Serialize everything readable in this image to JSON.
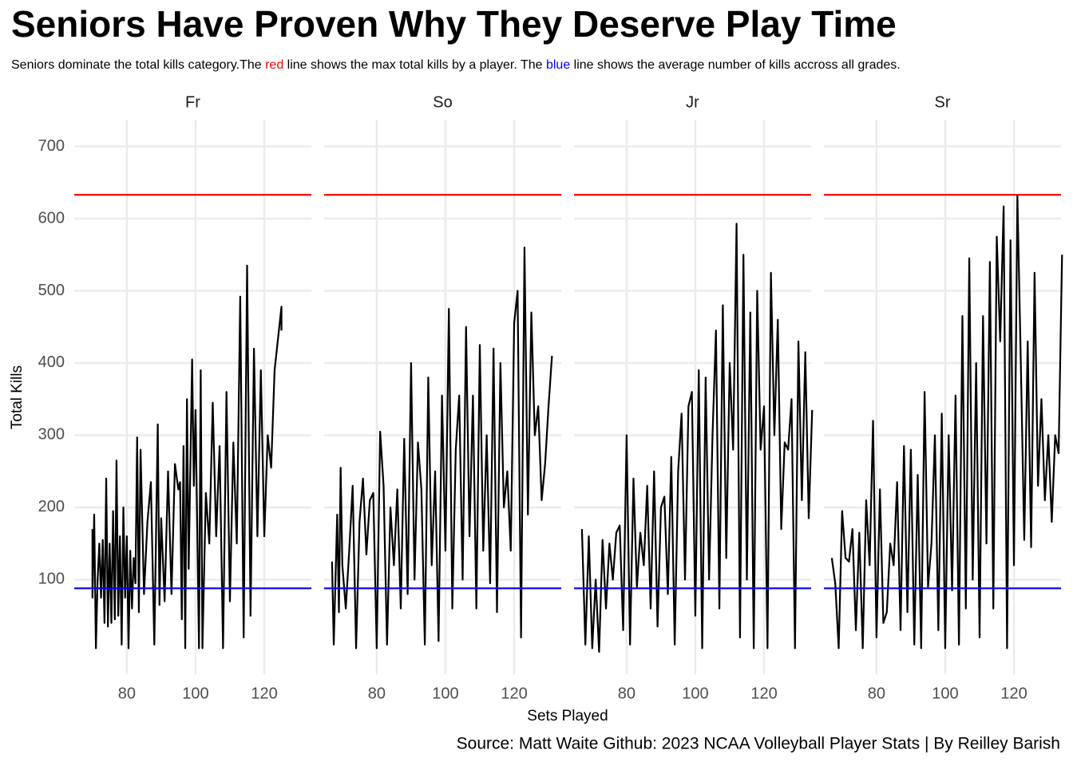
{
  "title": "Seniors Have Proven Why They Deserve Play Time",
  "subtitle": [
    {
      "text": "Seniors dominate the total kills category.The "
    },
    {
      "text": "red",
      "color": "#ff0000"
    },
    {
      "text": " line shows the max total kills by a player. The "
    },
    {
      "text": "blue",
      "color": "#0000ff"
    },
    {
      "text": " line shows the average number of kills accross all grades."
    }
  ],
  "x_label": "Sets Played",
  "y_label": "Total Kills",
  "caption": "Source: Matt Waite Github: 2023 NCAA Volleyball Player Stats | By Reilley Barish",
  "chart_data": [
    {
      "type": "line",
      "title": "Fr",
      "x": [
        70,
        70,
        70.5,
        71,
        71.5,
        72,
        72.5,
        73,
        73.5,
        74,
        74.5,
        75,
        75.5,
        76,
        76.5,
        77,
        77.5,
        78,
        78.5,
        79,
        79.5,
        80,
        80.5,
        81,
        81.5,
        82,
        82.5,
        83,
        83.5,
        84,
        85,
        86,
        87,
        88,
        89,
        89.5,
        90,
        91,
        92,
        93,
        94,
        95,
        95.5,
        96,
        96.5,
        97,
        97.5,
        98,
        99,
        99.5,
        100,
        101,
        101.5,
        102,
        103,
        104,
        105,
        106,
        107,
        108,
        109,
        110,
        111,
        112,
        113,
        114,
        115,
        116,
        117,
        118,
        119,
        120,
        121,
        122,
        123,
        125,
        125
      ],
      "series": [
        {
          "color": "#000000",
          "values": [
            170,
            75,
            190,
            5,
            100,
            150,
            75,
            155,
            40,
            240,
            35,
            150,
            40,
            195,
            45,
            265,
            50,
            160,
            10,
            200,
            75,
            160,
            5,
            140,
            60,
            130,
            95,
            297,
            55,
            280,
            80,
            180,
            235,
            10,
            315,
            65,
            185,
            70,
            250,
            80,
            260,
            225,
            235,
            45,
            285,
            5,
            350,
            115,
            405,
            230,
            335,
            5,
            390,
            5,
            220,
            150,
            345,
            160,
            285,
            5,
            360,
            70,
            290,
            150,
            492,
            20,
            535,
            50,
            420,
            160,
            390,
            160,
            300,
            255,
            390,
            478,
            445
          ]
        }
      ],
      "xlim": [
        64.7,
        133.7
      ],
      "ylim": [
        -31,
        737
      ],
      "xticks": [
        80,
        100,
        120
      ],
      "yticks": [
        100,
        200,
        300,
        400,
        500,
        600,
        700
      ],
      "grid": true,
      "reference_lines": [
        {
          "value": 633,
          "color": "#ff0000"
        },
        {
          "value": 88,
          "color": "#0000ff"
        }
      ]
    },
    {
      "type": "line",
      "title": "So",
      "x": [
        67,
        67.5,
        68,
        68.5,
        69,
        69.5,
        70,
        71,
        72,
        73,
        74,
        75,
        76,
        77,
        78,
        79,
        80,
        81,
        82,
        83,
        84,
        85,
        86,
        87,
        88,
        89,
        90,
        91,
        92,
        93,
        94,
        95,
        96,
        97,
        98,
        99,
        100,
        101,
        102,
        103,
        104,
        105,
        106,
        107,
        108,
        109,
        110,
        111,
        112,
        113,
        114,
        115,
        116,
        117,
        118,
        119,
        120,
        121,
        122,
        123,
        124,
        125,
        126,
        127,
        128,
        129,
        130,
        131
      ],
      "series": [
        {
          "color": "#000000",
          "values": [
            125,
            10,
            100,
            190,
            55,
            255,
            120,
            60,
            140,
            230,
            5,
            180,
            240,
            135,
            210,
            220,
            5,
            305,
            230,
            10,
            200,
            120,
            225,
            60,
            295,
            80,
            400,
            100,
            290,
            225,
            10,
            380,
            120,
            250,
            15,
            355,
            140,
            475,
            60,
            280,
            355,
            100,
            450,
            160,
            355,
            60,
            425,
            140,
            300,
            95,
            420,
            55,
            400,
            200,
            250,
            140,
            455,
            500,
            20,
            560,
            190,
            470,
            300,
            340,
            210,
            260,
            340,
            410
          ]
        }
      ],
      "xlim": [
        64.7,
        133.7
      ],
      "ylim": [
        -31,
        737
      ],
      "xticks": [
        80,
        100,
        120
      ],
      "yticks": [
        100,
        200,
        300,
        400,
        500,
        600,
        700
      ],
      "grid": true,
      "reference_lines": [
        {
          "value": 633,
          "color": "#ff0000"
        },
        {
          "value": 88,
          "color": "#0000ff"
        }
      ]
    },
    {
      "type": "line",
      "title": "Jr",
      "x": [
        67,
        68,
        69,
        70,
        71,
        72,
        73,
        74,
        75,
        76,
        77,
        78,
        79,
        80,
        81,
        82,
        83,
        84,
        85,
        86,
        87,
        88,
        89,
        90,
        91,
        92,
        93,
        94,
        95,
        96,
        97,
        98,
        99,
        100,
        101,
        102,
        103,
        104,
        105,
        106,
        107,
        108,
        109,
        110,
        111,
        112,
        113,
        114,
        115,
        116,
        117,
        118,
        119,
        120,
        121,
        122,
        123,
        124,
        125,
        126,
        127,
        128,
        129,
        130,
        131,
        132,
        133,
        134
      ],
      "series": [
        {
          "color": "#000000",
          "values": [
            170,
            10,
            160,
            5,
            100,
            0,
            155,
            60,
            150,
            100,
            165,
            175,
            30,
            300,
            10,
            240,
            90,
            165,
            120,
            230,
            60,
            250,
            35,
            200,
            215,
            80,
            270,
            10,
            250,
            330,
            100,
            340,
            360,
            50,
            390,
            5,
            380,
            100,
            300,
            445,
            60,
            480,
            130,
            400,
            280,
            593,
            20,
            550,
            100,
            470,
            5,
            500,
            280,
            340,
            5,
            525,
            300,
            460,
            170,
            290,
            280,
            350,
            5,
            430,
            210,
            415,
            185,
            335
          ]
        }
      ],
      "xlim": [
        64.7,
        133.7
      ],
      "ylim": [
        -31,
        737
      ],
      "xticks": [
        80,
        100,
        120
      ],
      "yticks": [
        100,
        200,
        300,
        400,
        500,
        600,
        700
      ],
      "grid": true,
      "reference_lines": [
        {
          "value": 633,
          "color": "#ff0000"
        },
        {
          "value": 88,
          "color": "#0000ff"
        }
      ]
    },
    {
      "type": "line",
      "title": "Sr",
      "x": [
        67,
        68,
        69,
        70,
        71,
        72,
        73,
        74,
        75,
        76,
        77,
        78,
        79,
        80,
        81,
        82,
        83,
        84,
        85,
        86,
        87,
        88,
        89,
        90,
        91,
        92,
        93,
        94,
        95,
        96,
        97,
        98,
        99,
        100,
        101,
        102,
        103,
        104,
        105,
        106,
        107,
        108,
        109,
        110,
        111,
        112,
        113,
        114,
        115,
        116,
        117,
        118,
        119,
        120,
        121,
        122,
        123,
        124,
        125,
        126,
        127,
        128,
        129,
        130,
        131,
        132,
        133,
        134
      ],
      "series": [
        {
          "color": "#000000",
          "values": [
            130,
            95,
            5,
            195,
            130,
            125,
            170,
            30,
            165,
            5,
            210,
            120,
            320,
            20,
            225,
            40,
            55,
            150,
            120,
            235,
            30,
            285,
            55,
            280,
            10,
            245,
            5,
            360,
            90,
            150,
            300,
            30,
            330,
            5,
            300,
            85,
            355,
            10,
            465,
            60,
            545,
            100,
            400,
            20,
            465,
            150,
            540,
            60,
            575,
            430,
            617,
            5,
            570,
            120,
            632,
            400,
            155,
            430,
            145,
            525,
            230,
            350,
            210,
            300,
            180,
            300,
            275,
            550
          ]
        }
      ],
      "xlim": [
        64.7,
        133.7
      ],
      "ylim": [
        -31,
        737
      ],
      "xticks": [
        80,
        100,
        120
      ],
      "yticks": [
        100,
        200,
        300,
        400,
        500,
        600,
        700
      ],
      "grid": true,
      "reference_lines": [
        {
          "value": 633,
          "color": "#ff0000"
        },
        {
          "value": 88,
          "color": "#0000ff"
        }
      ]
    }
  ]
}
